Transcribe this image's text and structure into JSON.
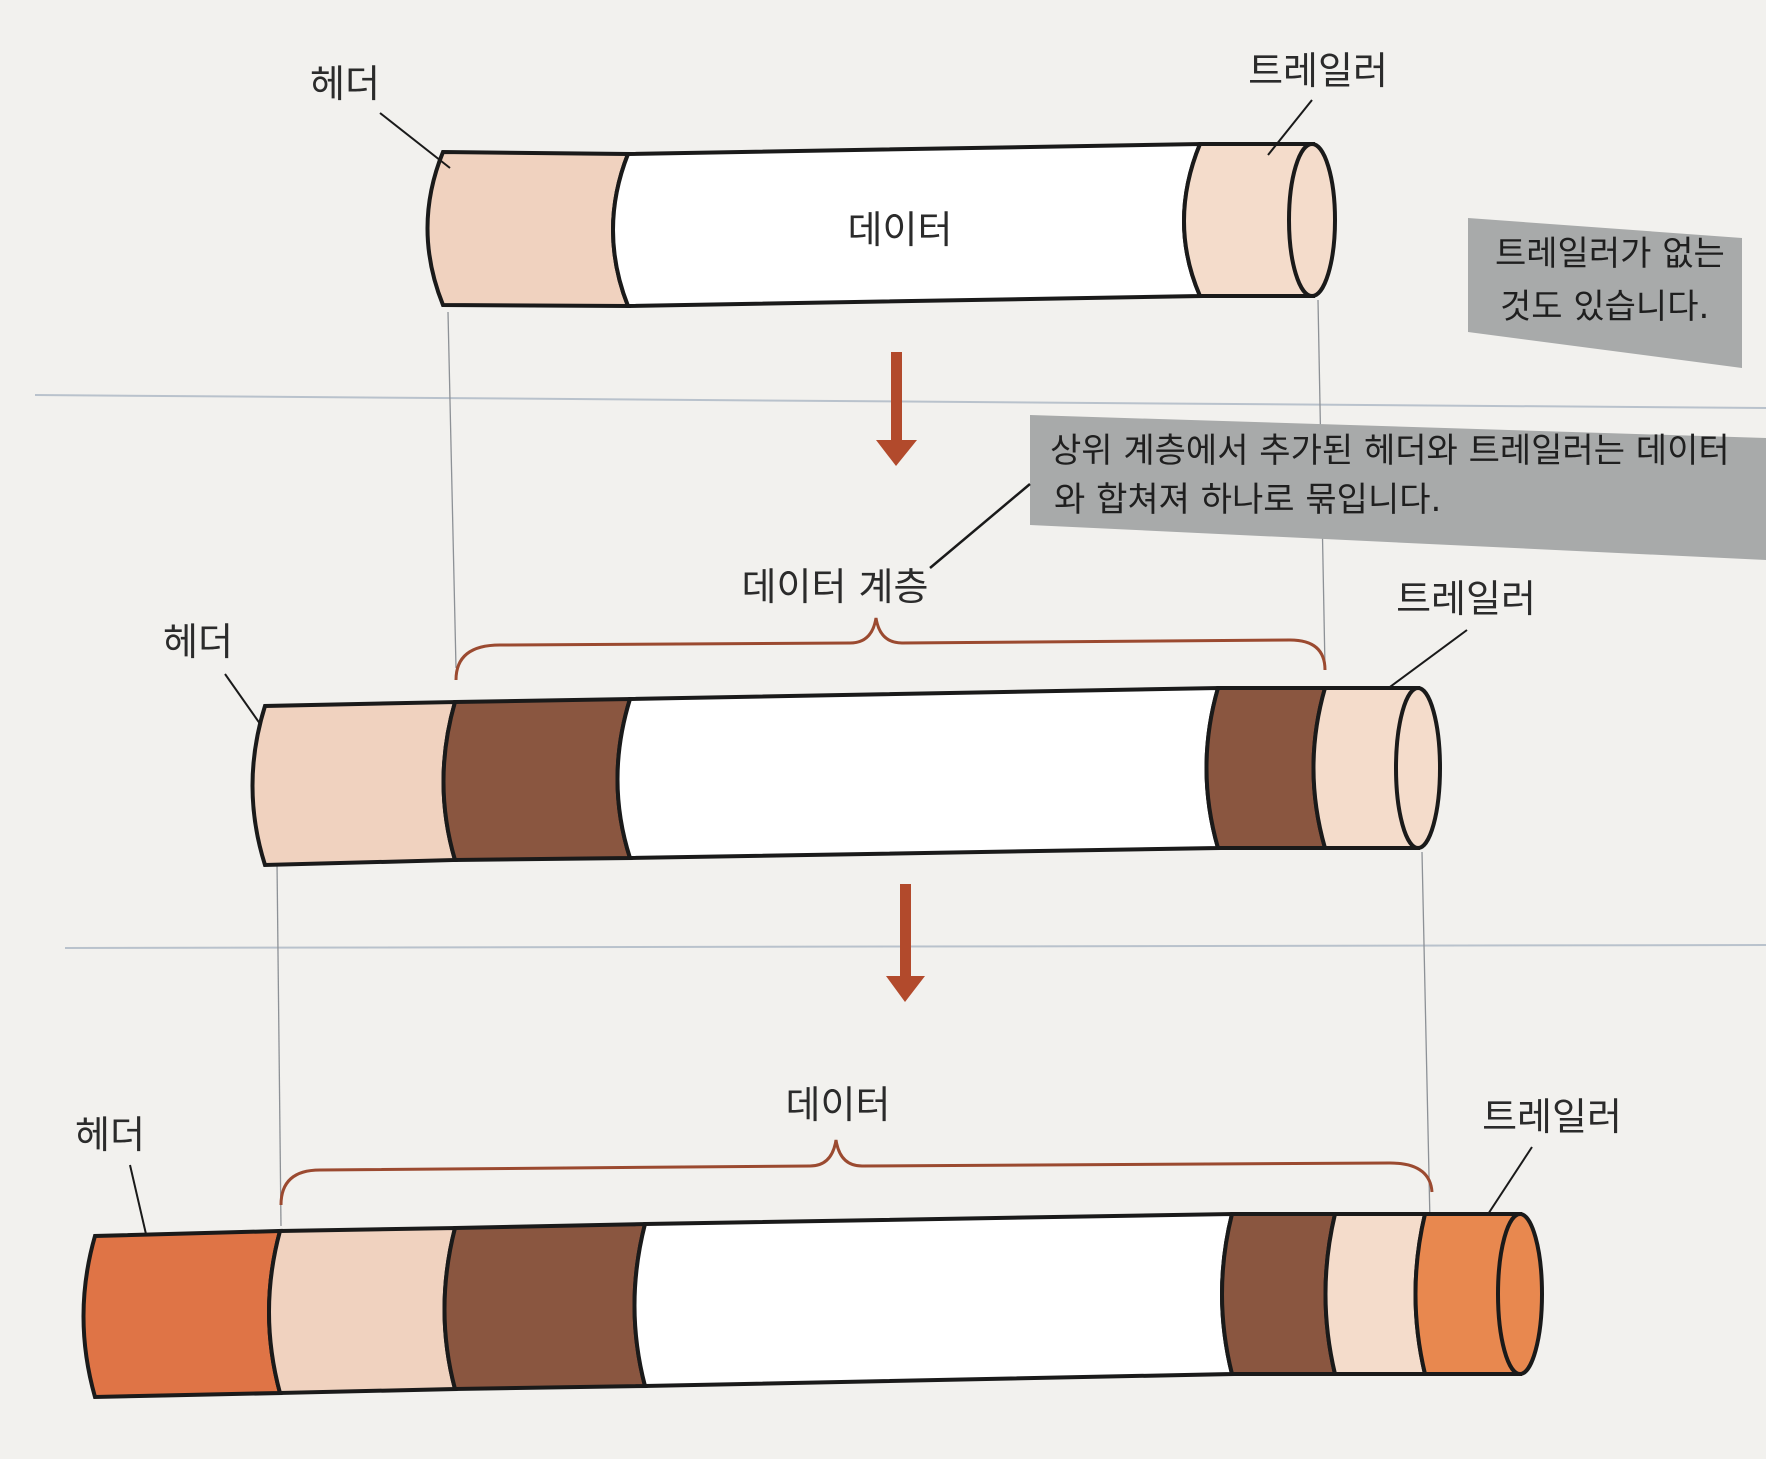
{
  "colors": {
    "header_light": "#f0d2bf",
    "trailer_light": "#f4dccb",
    "data_white": "#ffffff",
    "upper_dark": "#8a5640",
    "header_orange": "#df7446",
    "trailer_orange": "#e8884f",
    "arrow": "#b24a2c",
    "brace": "#9b4a30",
    "note_bg": "#a8aaaa",
    "outline": "#1a1a1a"
  },
  "stage1": {
    "header_label": "헤더",
    "trailer_label": "트레일러",
    "data_label": "데이터"
  },
  "note_top": {
    "line1": "트레일러가  없는",
    "line2": "것도 있습니다."
  },
  "note_mid": {
    "line1": "상위  계층에서  추가된  헤더와  트레일러는  데이터",
    "line2": "와  합쳐져   하나로  묶입니다."
  },
  "stage2": {
    "brace_label": "데이터 계층",
    "header_label": "헤더",
    "trailer_label": "트레일러"
  },
  "stage3": {
    "brace_label": "데이터",
    "header_label": "헤더",
    "trailer_label": "트레일러"
  },
  "arrows": [
    "arrow-down-icon",
    "arrow-down-icon"
  ]
}
